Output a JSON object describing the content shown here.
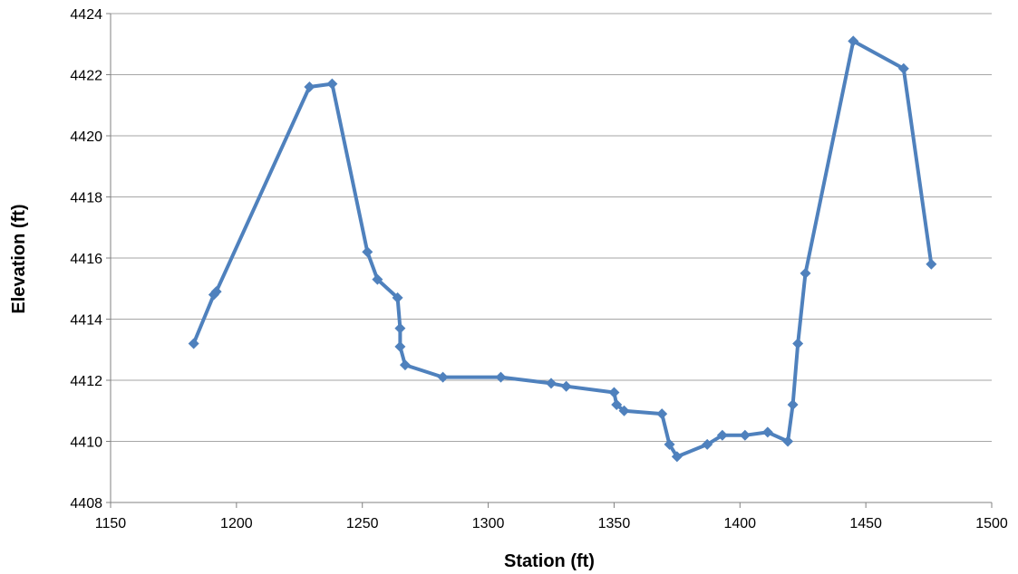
{
  "chart_data": {
    "type": "line",
    "title": "",
    "xlabel": "Station (ft)",
    "ylabel": "Elevation (ft)",
    "xlim": [
      1150,
      1500
    ],
    "ylim": [
      4408,
      4424
    ],
    "xticks": [
      1150,
      1200,
      1250,
      1300,
      1350,
      1400,
      1450,
      1500
    ],
    "yticks": [
      4408,
      4410,
      4412,
      4414,
      4416,
      4418,
      4420,
      4422,
      4424
    ],
    "grid": "horizontal",
    "legend": "none",
    "color": "#4F81BD",
    "marker": "diamond",
    "series": [
      {
        "x": [
          1183,
          1191,
          1192,
          1229,
          1238,
          1252,
          1256,
          1264,
          1265,
          1265,
          1267,
          1282,
          1305,
          1325,
          1331,
          1350,
          1351,
          1354,
          1369,
          1372,
          1375,
          1387,
          1393,
          1402,
          1411,
          1419,
          1421,
          1423,
          1426,
          1445,
          1465,
          1476
        ],
        "y": [
          4413.2,
          4414.8,
          4414.9,
          4421.6,
          4421.7,
          4416.2,
          4415.3,
          4414.7,
          4413.7,
          4413.1,
          4412.5,
          4412.1,
          4412.1,
          4411.9,
          4411.8,
          4411.6,
          4411.2,
          4411.0,
          4410.9,
          4409.9,
          4409.5,
          4409.9,
          4410.2,
          4410.2,
          4410.3,
          4410.0,
          4411.2,
          4413.2,
          4415.5,
          4423.1,
          4422.2,
          4415.8
        ]
      }
    ]
  }
}
